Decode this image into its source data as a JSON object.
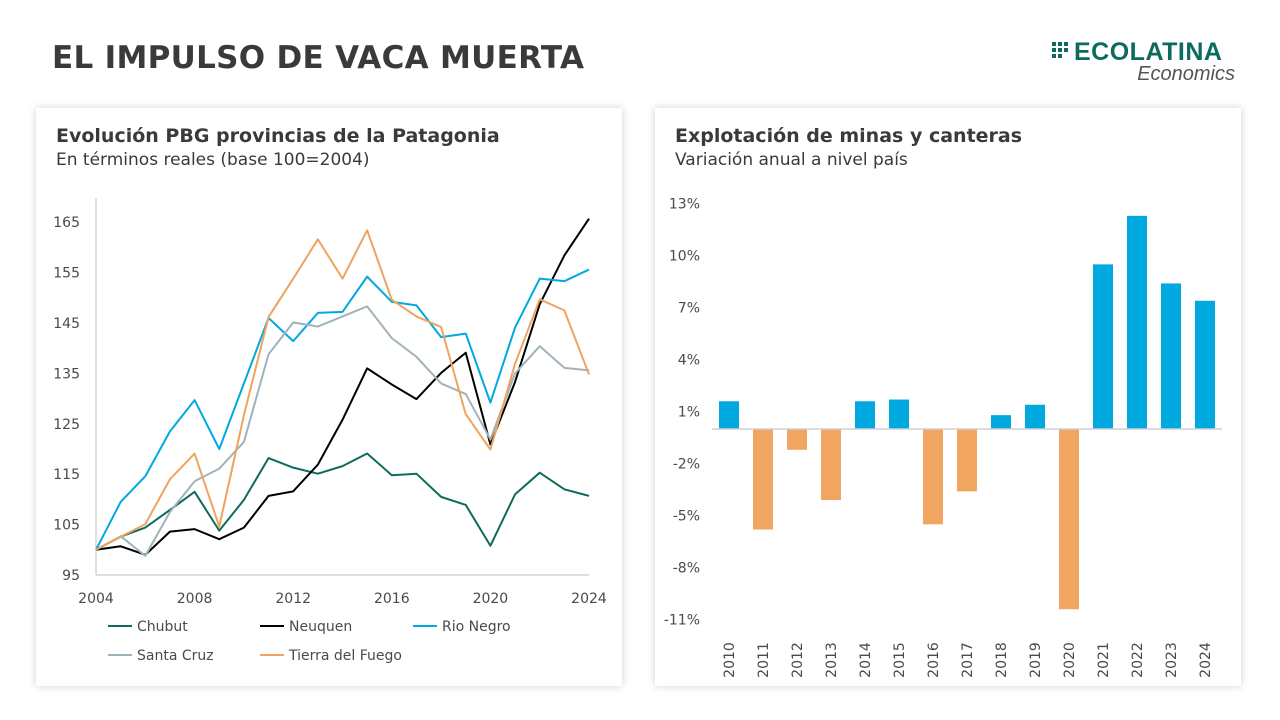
{
  "header": {
    "title": "EL IMPULSO DE VACA MUERTA"
  },
  "logo": {
    "brand": "ECOLATINA",
    "sub": "Economics",
    "color": "#0d6b5e"
  },
  "chart_data": [
    {
      "type": "line",
      "title": "Evolución PBG provincias de la Patagonia",
      "subtitle": "En términos reales (base 100=2004)",
      "xlabel": "",
      "ylabel": "",
      "x": [
        2004,
        2005,
        2006,
        2007,
        2008,
        2009,
        2010,
        2011,
        2012,
        2013,
        2014,
        2015,
        2016,
        2017,
        2018,
        2019,
        2020,
        2021,
        2022,
        2023,
        2024
      ],
      "xticks": [
        "2004",
        "2008",
        "2012",
        "2016",
        "2020",
        "2024"
      ],
      "yticks": [
        "95",
        "105",
        "115",
        "125",
        "135",
        "145",
        "155",
        "165"
      ],
      "ylim": [
        95,
        170
      ],
      "legend_position": "bottom",
      "series": [
        {
          "name": "Chubut",
          "color": "#0d6b5e",
          "values": [
            100,
            102.6,
            104.4,
            107.9,
            111.5,
            103.8,
            109.9,
            118.2,
            116.3,
            115.1,
            116.6,
            119.1,
            114.8,
            115.1,
            110.5,
            108.9,
            100.8,
            111,
            115.3,
            112,
            110.7
          ]
        },
        {
          "name": "Neuquen",
          "color": "#000000",
          "values": [
            100,
            100.7,
            99,
            103.6,
            104.1,
            102.1,
            104.4,
            110.7,
            111.6,
            116.9,
            125.8,
            136,
            132.8,
            129.9,
            135.1,
            139.1,
            120.9,
            133.3,
            148.7,
            158.4,
            165.7
          ]
        },
        {
          "name": "Rio Negro",
          "color": "#00a9e0",
          "values": [
            100,
            109.5,
            114.6,
            123.5,
            129.7,
            120,
            133,
            146,
            141.4,
            147,
            147.2,
            154.2,
            149.2,
            148.5,
            142.2,
            142.9,
            129.2,
            144.1,
            153.8,
            153.3,
            155.6
          ]
        },
        {
          "name": "Santa Cruz",
          "color": "#9fb3bb",
          "values": [
            100,
            102.7,
            98.8,
            107.5,
            113.6,
            116.1,
            121.4,
            138.8,
            145.1,
            144.3,
            146.3,
            148.3,
            142,
            138.3,
            133,
            130.9,
            121.9,
            135,
            140.4,
            136.1,
            135.6
          ]
        },
        {
          "name": "Tierra del Fuego",
          "color": "#f0a35e",
          "values": [
            100,
            102.6,
            105.1,
            114,
            119.1,
            104.6,
            126.7,
            146.2,
            153.8,
            161.6,
            153.8,
            163.4,
            149.6,
            146.3,
            144.2,
            126.9,
            119.9,
            136.9,
            149.7,
            147.5,
            134.8
          ]
        }
      ]
    },
    {
      "type": "bar",
      "title": "Explotación de minas y canteras",
      "subtitle": "Variación anual a nivel país",
      "xlabel": "",
      "ylabel": "",
      "categories": [
        "2010",
        "2011",
        "2012",
        "2013",
        "2014",
        "2015",
        "2016",
        "2017",
        "2018",
        "2019",
        "2020",
        "2021",
        "2022",
        "2023",
        "2024"
      ],
      "values": [
        1.6,
        -5.8,
        -1.2,
        -4.1,
        1.6,
        1.7,
        -5.5,
        -3.6,
        0.8,
        1.4,
        -10.4,
        9.5,
        12.3,
        8.4,
        7.4
      ],
      "yticks": [
        "13%",
        "10%",
        "7%",
        "4%",
        "1%",
        "-2%",
        "-5%",
        "-8%",
        "-11%"
      ],
      "ylim": [
        -11,
        13
      ],
      "positive_color": "#00a9e0",
      "negative_color": "#f0a661"
    }
  ]
}
